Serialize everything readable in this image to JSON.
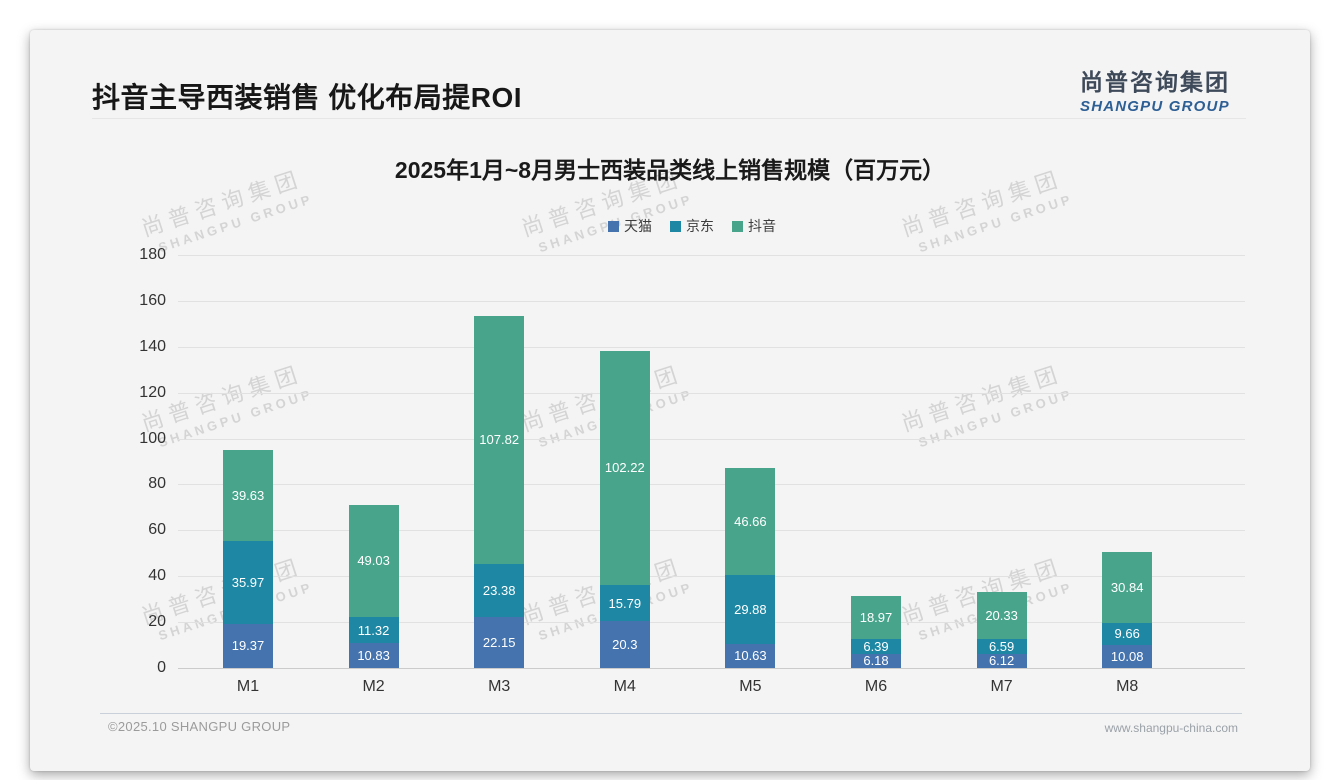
{
  "header": {
    "title": "抖音主导西装销售 优化布局提ROI",
    "logo_cn": "尚普咨询集团",
    "logo_en": "SHANGPU GROUP"
  },
  "watermark": {
    "line1": "尚普咨询集团",
    "line2": "SHANGPU GROUP"
  },
  "footer": {
    "copyright": "©2025.10 SHANGPU GROUP",
    "website": "www.shangpu-china.com"
  },
  "chart_data": {
    "type": "bar",
    "stacked": true,
    "title": "2025年1月~8月男士西装品类线上销售规模（百万元）",
    "categories": [
      "M1",
      "M2",
      "M3",
      "M4",
      "M5",
      "M6",
      "M7",
      "M8"
    ],
    "series": [
      {
        "key": "tmall",
        "name": "天猫",
        "color": "#4573ae",
        "values": [
          19.37,
          10.83,
          22.15,
          20.3,
          10.63,
          6.18,
          6.12,
          10.08
        ]
      },
      {
        "key": "jd",
        "name": "京东",
        "color": "#1e87a4",
        "values": [
          35.97,
          11.32,
          23.38,
          15.79,
          29.88,
          6.39,
          6.59,
          9.66
        ]
      },
      {
        "key": "douyin",
        "name": "抖音",
        "color": "#48a58b",
        "values": [
          39.63,
          49.03,
          107.82,
          102.22,
          46.66,
          18.97,
          20.33,
          30.84
        ]
      }
    ],
    "ylabel": "",
    "xlabel": "",
    "ylim": [
      0,
      180
    ],
    "ytick_step": 20,
    "grid": true,
    "legend_position": "top-center"
  }
}
